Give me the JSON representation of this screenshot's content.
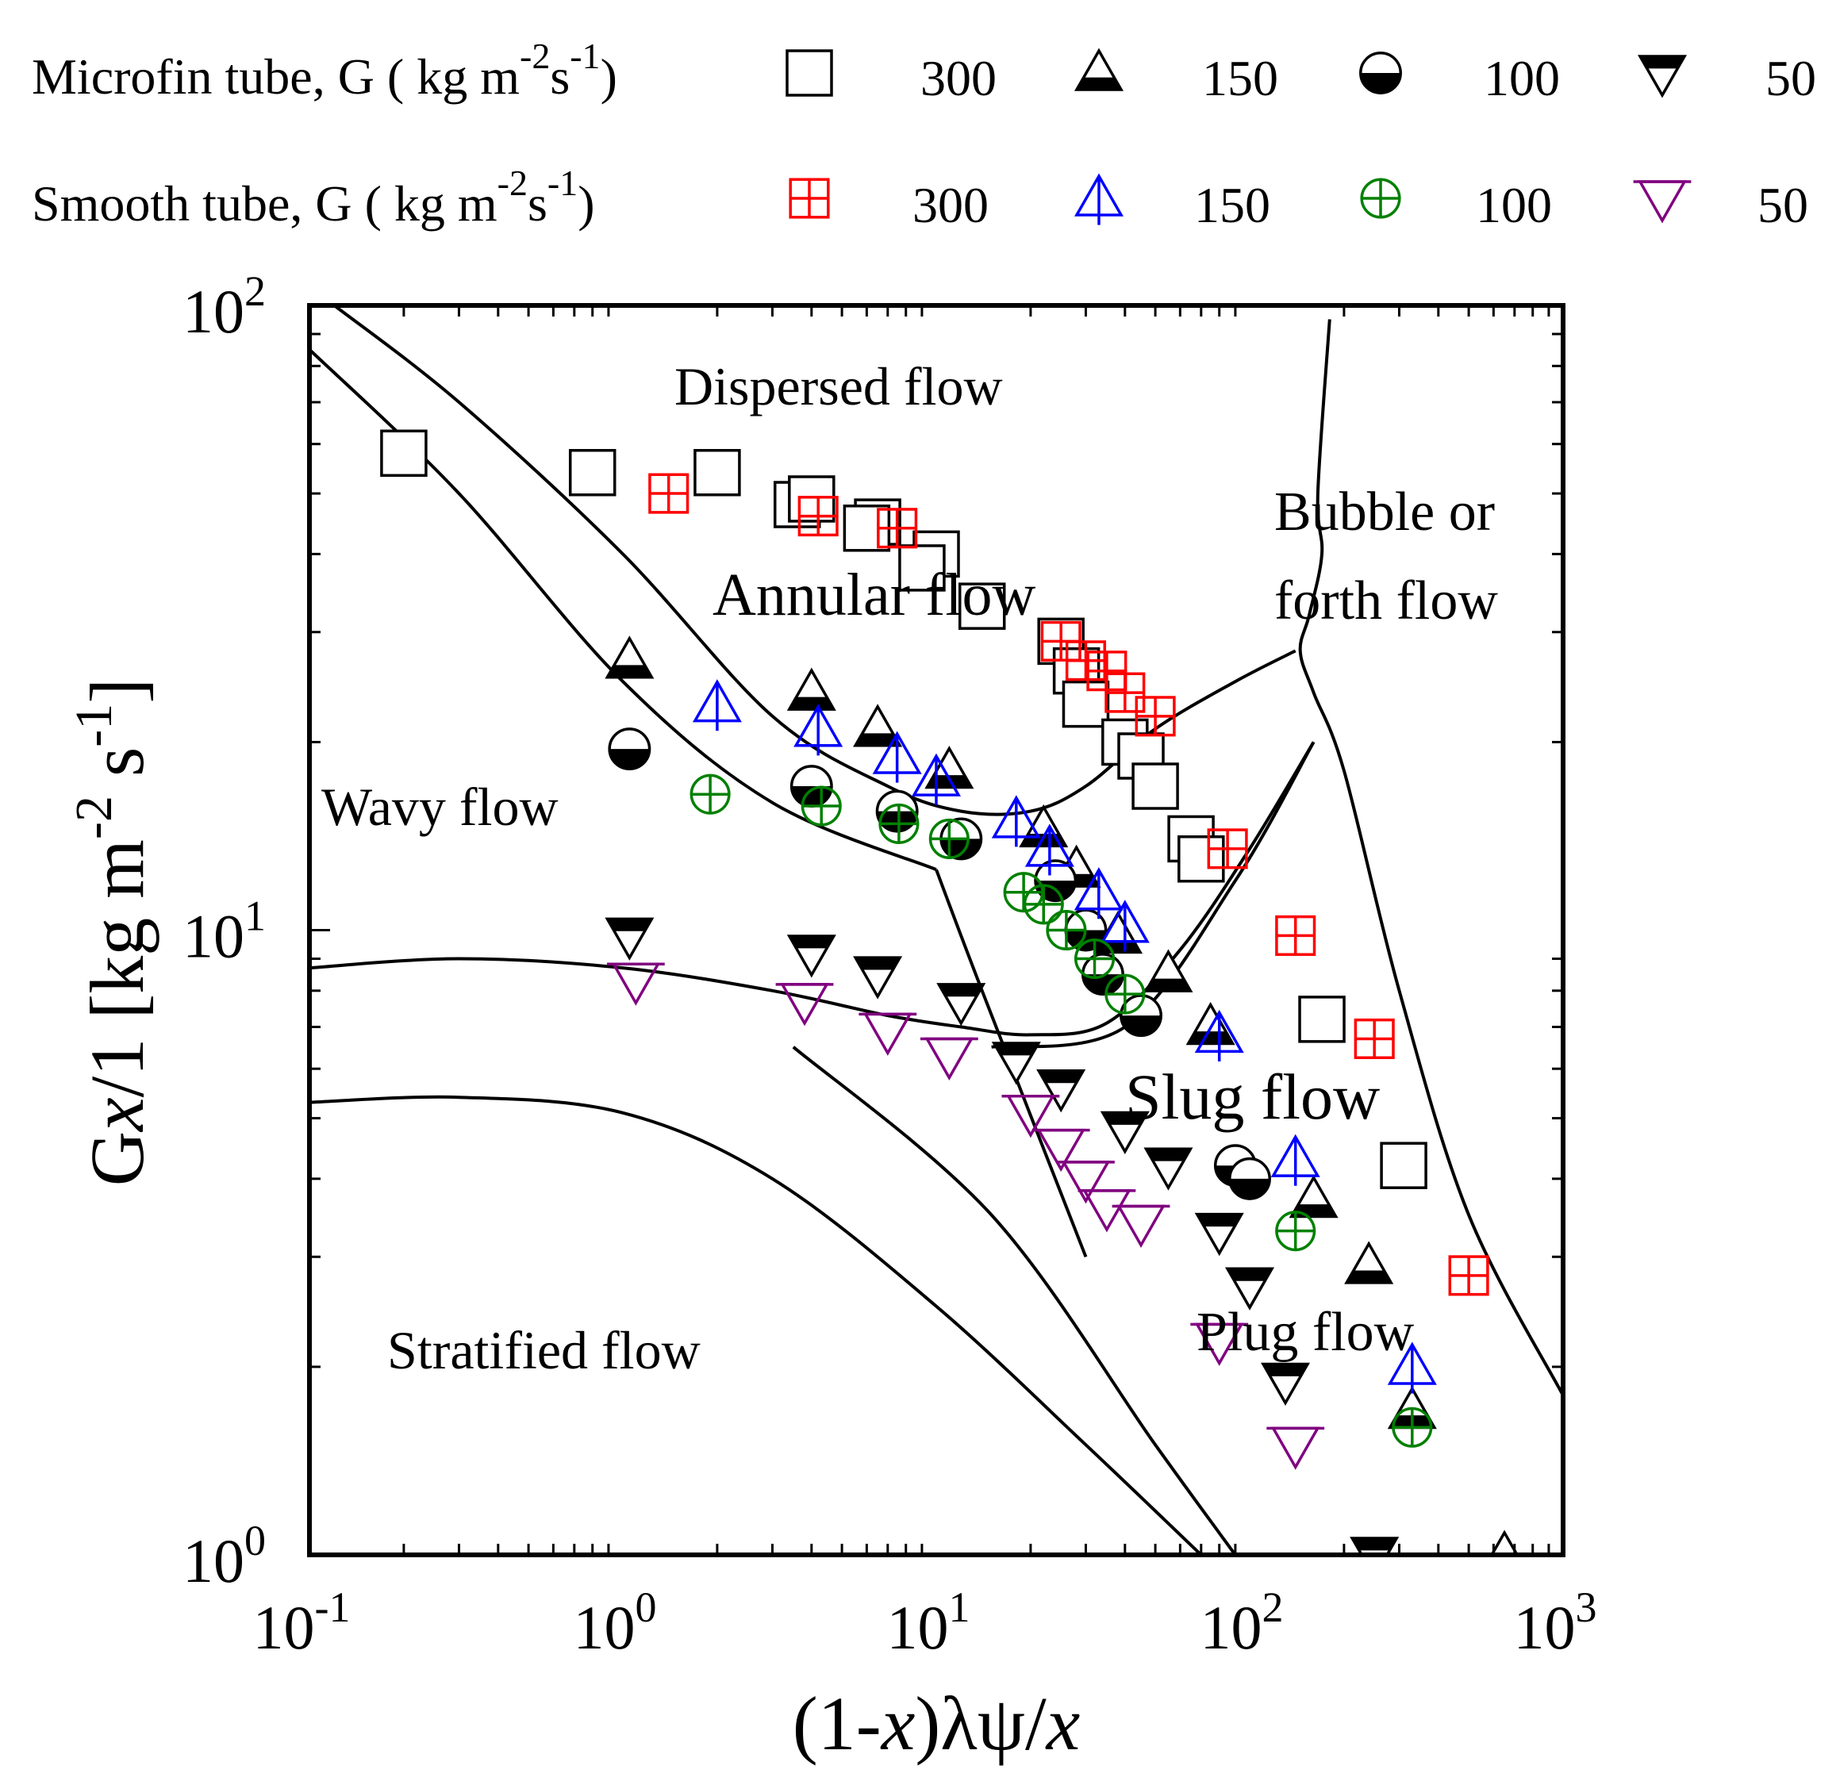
{
  "legend": {
    "microfin_label": "Microfin tube, G ( kg m",
    "microfin_exp1": "-2",
    "microfin_mid": "s",
    "microfin_exp2": "-1",
    "microfin_close": ")",
    "smooth_label": "Smooth tube, G ( kg m",
    "smooth_exp1": "-2",
    "smooth_mid": "s",
    "smooth_exp2": "-1",
    "smooth_close": ")",
    "microfin_entries": [
      {
        "value": "300",
        "marker": "open-square",
        "color": "#000000"
      },
      {
        "value": "150",
        "marker": "half-filled-triangle-up",
        "color": "#000000"
      },
      {
        "value": "100",
        "marker": "half-filled-circle",
        "color": "#000000"
      },
      {
        "value": "50",
        "marker": "half-filled-triangle-down",
        "color": "#000000"
      }
    ],
    "smooth_entries": [
      {
        "value": "300",
        "marker": "boxed-plus-square",
        "color": "#ff0000"
      },
      {
        "value": "150",
        "marker": "triangle-up-with-stem",
        "color": "#0000ff"
      },
      {
        "value": "100",
        "marker": "circled-plus",
        "color": "#008000"
      },
      {
        "value": "50",
        "marker": "triangle-down-with-bar",
        "color": "#800080"
      }
    ]
  },
  "axes": {
    "x_label_open": "(1-",
    "x_label_x1": "x",
    "x_label_mid": ")λψ/",
    "x_label_x2": "x",
    "y_label_start": "G",
    "y_label_x": "x",
    "y_label_rest": "/1 [kg m",
    "y_label_exp1": "-2",
    "y_label_s": " s",
    "y_label_exp2": "-1",
    "y_label_end": "]",
    "x_ticks": [
      {
        "base": "10",
        "exp": "-1"
      },
      {
        "base": "10",
        "exp": "0"
      },
      {
        "base": "10",
        "exp": "1"
      },
      {
        "base": "10",
        "exp": "2"
      },
      {
        "base": "10",
        "exp": "3"
      }
    ],
    "y_ticks": [
      {
        "base": "10",
        "exp": "0"
      },
      {
        "base": "10",
        "exp": "1"
      },
      {
        "base": "10",
        "exp": "2"
      }
    ]
  },
  "regions": {
    "dispersed": "Dispersed flow",
    "annular": "Annular flow",
    "wavy": "Wavy flow",
    "stratified": "Stratified flow",
    "slug": "Slug flow",
    "plug": "Plug flow",
    "bubble_1": "Bubble or",
    "bubble_2": "forth flow"
  },
  "chart_data": {
    "type": "scatter",
    "x_scale": "log",
    "y_scale": "log",
    "xlim": [
      0.1,
      1000
    ],
    "ylim": [
      1,
      100
    ],
    "boundary_lines": [
      [
        [
          0.12,
          100
        ],
        [
          0.3,
          70
        ],
        [
          1,
          40
        ],
        [
          3,
          22
        ],
        [
          7,
          17
        ],
        [
          12,
          15.5
        ],
        [
          20,
          15.5
        ],
        [
          30,
          17
        ],
        [
          50,
          21
        ],
        [
          90,
          25
        ],
        [
          140,
          28
        ]
      ],
      [
        [
          0.1,
          85
        ],
        [
          0.3,
          50
        ],
        [
          1,
          25
        ],
        [
          3,
          16
        ],
        [
          10,
          12.5
        ]
      ],
      [
        [
          10,
          12.5
        ],
        [
          14,
          8
        ],
        [
          30,
          3
        ]
      ],
      [
        [
          0.1,
          8.7
        ],
        [
          0.3,
          9
        ],
        [
          1,
          8.7
        ],
        [
          3,
          8
        ],
        [
          7,
          7.3
        ],
        [
          12,
          7
        ],
        [
          20,
          6.8
        ],
        [
          35,
          7.1
        ],
        [
          60,
          9.3
        ],
        [
          100,
          13.5
        ],
        [
          160,
          20
        ]
      ],
      [
        [
          0.1,
          5.3
        ],
        [
          0.3,
          5.4
        ],
        [
          1,
          5.1
        ],
        [
          3,
          4
        ],
        [
          10,
          2.5
        ],
        [
          30,
          1.5
        ],
        [
          70,
          1
        ]
      ],
      [
        [
          3.5,
          6.5
        ],
        [
          15,
          3.5
        ],
        [
          50,
          1.5
        ],
        [
          90,
          1
        ]
      ],
      [
        [
          180,
          95
        ],
        [
          165,
          50
        ],
        [
          170,
          40
        ],
        [
          155,
          32
        ],
        [
          145,
          28
        ],
        [
          160,
          24
        ],
        [
          200,
          18
        ],
        [
          300,
          8
        ],
        [
          500,
          3.5
        ],
        [
          1000,
          1.8
        ]
      ],
      [
        [
          160,
          20
        ],
        [
          90,
          12
        ],
        [
          40,
          7
        ],
        [
          15,
          6.5
        ]
      ]
    ],
    "series": [
      {
        "name": "Microfin tube 300",
        "marker": "open-square",
        "color": "#000000",
        "points": [
          [
            0.2,
            58
          ],
          [
            0.8,
            54
          ],
          [
            2,
            54
          ],
          [
            3.6,
            48
          ],
          [
            4,
            49
          ],
          [
            6.5,
            45
          ],
          [
            6,
            44
          ],
          [
            10,
            40
          ],
          [
            9,
            38
          ],
          [
            14,
            33
          ],
          [
            25,
            29
          ],
          [
            28,
            26
          ],
          [
            30,
            23
          ],
          [
            40,
            20
          ],
          [
            45,
            19
          ],
          [
            50,
            17
          ],
          [
            65,
            14
          ],
          [
            70,
            13
          ],
          [
            170,
            7.2
          ],
          [
            310,
            4.2
          ]
        ]
      },
      {
        "name": "Microfin tube 150",
        "marker": "half-filled-triangle-up",
        "color": "#000000",
        "points": [
          [
            1.05,
            27
          ],
          [
            4,
            24
          ],
          [
            6.5,
            21
          ],
          [
            11,
            18
          ],
          [
            22,
            14.5
          ],
          [
            28,
            12.5
          ],
          [
            38,
            9.8
          ],
          [
            55,
            8.5
          ],
          [
            75,
            7
          ],
          [
            160,
            3.7
          ],
          [
            240,
            2.9
          ],
          [
            330,
            1.7
          ],
          [
            650,
            1.0
          ]
        ]
      },
      {
        "name": "Microfin tube 100",
        "marker": "half-filled-circle",
        "color": "#000000",
        "points": [
          [
            1.05,
            19.5
          ],
          [
            4,
            17
          ],
          [
            7.5,
            15.5
          ],
          [
            12,
            14
          ],
          [
            24,
            12
          ],
          [
            30,
            10
          ],
          [
            34,
            8.5
          ],
          [
            45,
            7.3
          ],
          [
            90,
            4.2
          ],
          [
            100,
            4
          ]
        ]
      },
      {
        "name": "Microfin tube 50",
        "marker": "half-filled-triangle-down",
        "color": "#000000",
        "points": [
          [
            1.05,
            9.8
          ],
          [
            4,
            9.2
          ],
          [
            6.5,
            8.5
          ],
          [
            12,
            7.7
          ],
          [
            18,
            6.2
          ],
          [
            25,
            5.6
          ],
          [
            40,
            4.8
          ],
          [
            55,
            4.2
          ],
          [
            80,
            3.3
          ],
          [
            100,
            2.7
          ],
          [
            130,
            1.9
          ],
          [
            250,
            1.0
          ]
        ]
      },
      {
        "name": "Smooth tube 300",
        "marker": "boxed-plus-square",
        "color": "#ff0000",
        "points": [
          [
            1.4,
            50
          ],
          [
            4.2,
            46
          ],
          [
            7.5,
            44
          ],
          [
            25,
            29
          ],
          [
            30,
            27
          ],
          [
            35,
            26
          ],
          [
            40,
            24
          ],
          [
            50,
            22
          ],
          [
            85,
            13.5
          ],
          [
            140,
            9.8
          ],
          [
            250,
            6.7
          ],
          [
            500,
            2.8
          ]
        ]
      },
      {
        "name": "Smooth tube 150",
        "marker": "triangle-up-with-stem",
        "color": "#0000ff",
        "points": [
          [
            2,
            23
          ],
          [
            4.2,
            21
          ],
          [
            7.5,
            19
          ],
          [
            10,
            17.5
          ],
          [
            18,
            15
          ],
          [
            23,
            13.5
          ],
          [
            33,
            11.5
          ],
          [
            40,
            10.2
          ],
          [
            80,
            6.8
          ],
          [
            140,
            4.3
          ],
          [
            330,
            2.0
          ]
        ]
      },
      {
        "name": "Smooth tube 100",
        "marker": "circled-plus",
        "color": "#008000",
        "points": [
          [
            1.9,
            16.5
          ],
          [
            4.3,
            15.8
          ],
          [
            7.6,
            14.8
          ],
          [
            11,
            14
          ],
          [
            19,
            11.5
          ],
          [
            22,
            11
          ],
          [
            26,
            10
          ],
          [
            32,
            9
          ],
          [
            40,
            7.9
          ],
          [
            140,
            3.3
          ],
          [
            330,
            1.6
          ]
        ]
      },
      {
        "name": "Smooth tube 50",
        "marker": "triangle-down-with-bar",
        "color": "#800080",
        "points": [
          [
            1.1,
            8.3
          ],
          [
            3.8,
            7.7
          ],
          [
            7,
            6.9
          ],
          [
            11,
            6.3
          ],
          [
            20,
            5.1
          ],
          [
            25,
            4.5
          ],
          [
            30,
            4
          ],
          [
            35,
            3.6
          ],
          [
            45,
            3.4
          ],
          [
            80,
            2.2
          ],
          [
            140,
            1.5
          ]
        ]
      }
    ]
  }
}
